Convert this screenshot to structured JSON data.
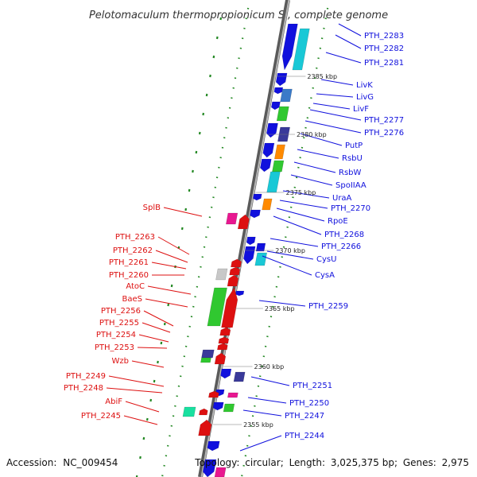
{
  "title": "Pelotomaculum thermopropionicum SI, complete genome",
  "accession_label": "Accession:",
  "accession": "NC_009454",
  "topology_label": "Topology:",
  "topology": "circular",
  "length_label": "Length:",
  "length": "3,025,375 bp",
  "genes_label": "Genes:",
  "genes": "2,975",
  "colors": {
    "forward": "#1010dd",
    "reverse": "#dd1010",
    "backbone": "#888888",
    "tick": "#228822"
  },
  "scale": [
    {
      "label": "2385 kbp",
      "kbp": 2385
    },
    {
      "label": "2380 kbp",
      "kbp": 2380
    },
    {
      "label": "2375 kbp",
      "kbp": 2375
    },
    {
      "label": "2370 kbp",
      "kbp": 2370
    },
    {
      "label": "2365 kbp",
      "kbp": 2365
    },
    {
      "label": "2360 kbp",
      "kbp": 2360
    },
    {
      "label": "2355 kbp",
      "kbp": 2355
    }
  ],
  "forward_labels": [
    "PTH_2283",
    "PTH_2282",
    "PTH_2281",
    "LivK",
    "LivG",
    "LivF",
    "PTH_2277",
    "PTH_2276",
    "PutP",
    "RsbU",
    "RsbW",
    "SpoIIAA",
    "UraA",
    "PTH_2270",
    "RpoE",
    "PTH_2268",
    "PTH_2266",
    "CysU",
    "CysA",
    "PTH_2259",
    "PTH_2251",
    "PTH_2250",
    "PTH_2247",
    "PTH_2244"
  ],
  "reverse_labels": [
    "SplB",
    "PTH_2263",
    "PTH_2262",
    "PTH_2261",
    "PTH_2260",
    "AtoC",
    "BaeS",
    "PTH_2256",
    "PTH_2255",
    "PTH_2254",
    "PTH_2253",
    "Wzb",
    "PTH_2249",
    "PTH_2248",
    "AbiF",
    "PTH_2245"
  ]
}
